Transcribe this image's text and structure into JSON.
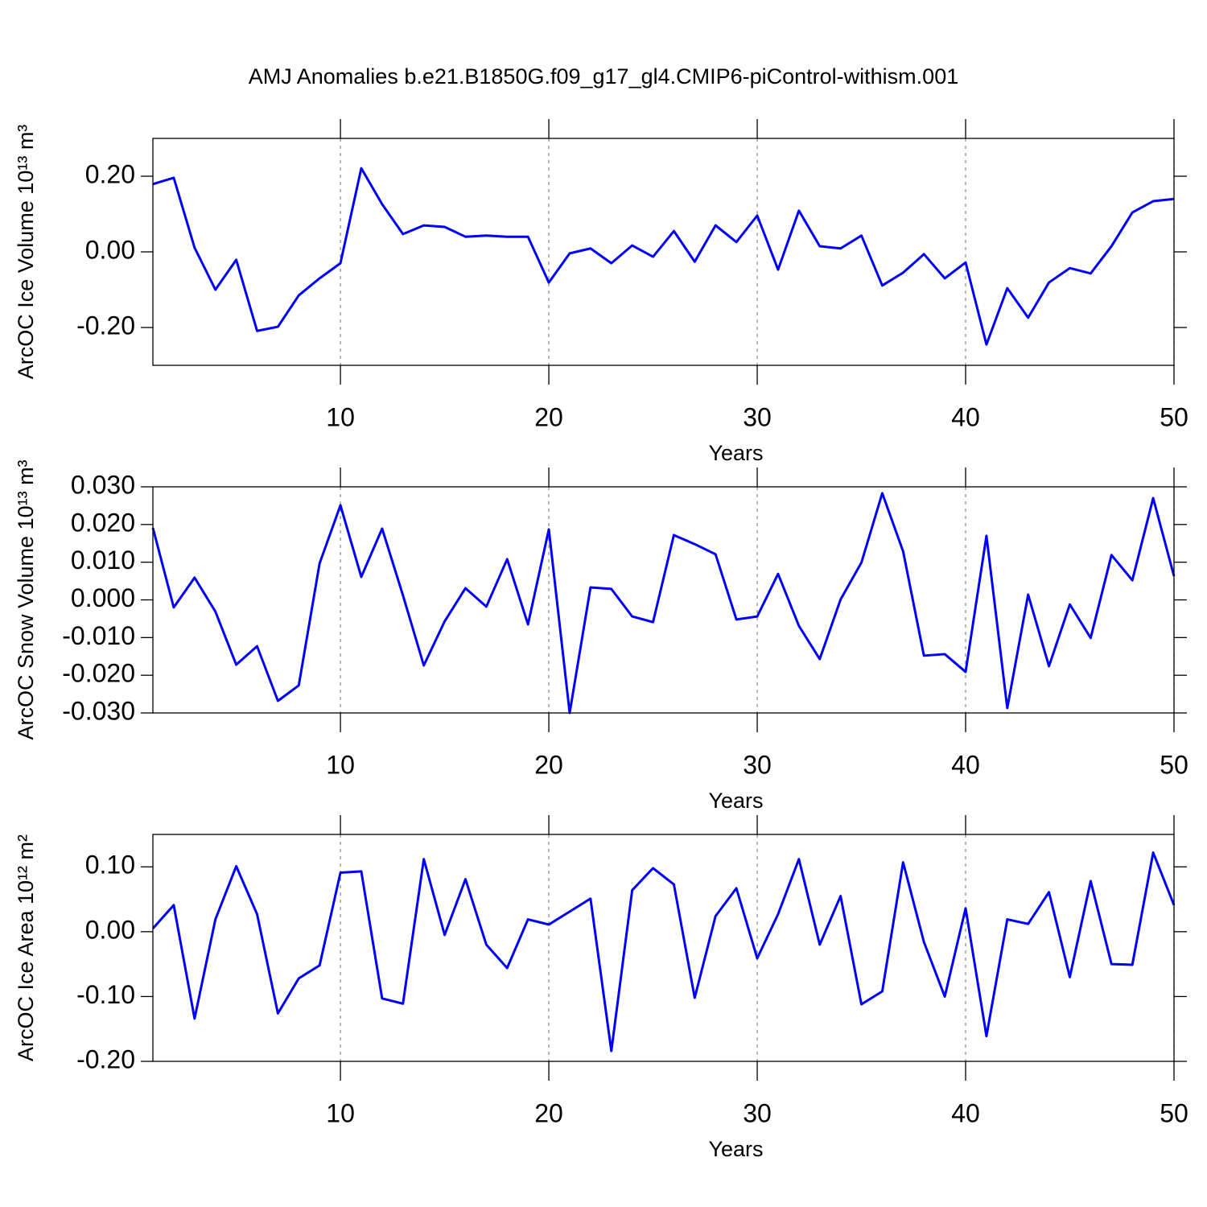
{
  "title": "AMJ Anomalies b.e21.B1850G.f09_g17_gl4.CMIP6-piControl-withism.001",
  "chart_data": [
    {
      "type": "line",
      "xlabel": "Years",
      "ylabel": "ArcOC Ice Volume 10¹³ m³",
      "color": "#0000ff",
      "xgrid": true,
      "x": [
        1,
        2,
        3,
        4,
        5,
        6,
        7,
        8,
        9,
        10,
        11,
        12,
        13,
        14,
        15,
        16,
        17,
        18,
        19,
        20,
        21,
        22,
        23,
        24,
        25,
        26,
        27,
        28,
        29,
        30,
        31,
        32,
        33,
        34,
        35,
        36,
        37,
        38,
        39,
        40,
        41,
        42,
        43,
        44,
        45,
        46,
        47,
        48,
        49,
        50
      ],
      "values": [
        0.179,
        0.196,
        0.011,
        -0.1,
        -0.021,
        -0.209,
        -0.198,
        -0.115,
        -0.07,
        -0.03,
        0.221,
        0.126,
        0.047,
        0.07,
        0.066,
        0.04,
        0.043,
        0.04,
        0.04,
        -0.081,
        -0.004,
        0.009,
        -0.03,
        0.017,
        -0.013,
        0.055,
        -0.026,
        0.07,
        0.026,
        0.096,
        -0.047,
        0.109,
        0.015,
        0.009,
        0.043,
        -0.089,
        -0.055,
        -0.006,
        -0.07,
        -0.028,
        -0.245,
        -0.096,
        -0.174,
        -0.081,
        -0.043,
        -0.057,
        0.015,
        0.104,
        0.134,
        0.14
      ],
      "xlim": [
        1,
        50
      ],
      "xticks": [
        10,
        20,
        30,
        40,
        50
      ],
      "ylim": [
        -0.3,
        0.3
      ],
      "yticks": [
        {
          "value": -0.2,
          "label": "-0.20"
        },
        {
          "value": 0,
          "label": "0.00"
        },
        {
          "value": 0.2,
          "label": "0.20"
        }
      ]
    },
    {
      "type": "line",
      "xlabel": "Years",
      "ylabel": "ArcOC Snow Volume 10¹³ m³",
      "color": "#0000ff",
      "xgrid": true,
      "x": [
        1,
        2,
        3,
        4,
        5,
        6,
        7,
        8,
        9,
        10,
        11,
        12,
        13,
        14,
        15,
        16,
        17,
        18,
        19,
        20,
        21,
        22,
        23,
        24,
        25,
        26,
        27,
        28,
        29,
        30,
        31,
        32,
        33,
        34,
        35,
        36,
        37,
        38,
        39,
        40,
        41,
        42,
        43,
        44,
        45,
        46,
        47,
        48,
        49,
        50
      ],
      "values": [
        0.0191,
        -0.002,
        0.0059,
        -0.0031,
        -0.0172,
        -0.0123,
        -0.0268,
        -0.0227,
        0.0097,
        0.0251,
        0.0061,
        0.0189,
        0.0012,
        -0.0174,
        -0.0057,
        0.0031,
        -0.0018,
        0.0108,
        -0.0065,
        0.0187,
        -0.03,
        0.0033,
        0.0029,
        -0.0044,
        -0.0059,
        0.0172,
        0.0148,
        0.0121,
        -0.0052,
        -0.0044,
        0.0069,
        -0.0069,
        -0.0157,
        0.0001,
        0.0099,
        0.0283,
        0.0129,
        -0.0148,
        -0.0144,
        -0.0191,
        0.017,
        -0.0287,
        0.0014,
        -0.0176,
        -0.0012,
        -0.0101,
        0.0119,
        0.0052,
        0.027,
        0.0063
      ],
      "xlim": [
        1,
        50
      ],
      "xticks": [
        10,
        20,
        30,
        40,
        50
      ],
      "ylim": [
        -0.03,
        0.03
      ],
      "yticks": [
        {
          "value": -0.03,
          "label": "-0.030"
        },
        {
          "value": -0.02,
          "label": "-0.020"
        },
        {
          "value": -0.01,
          "label": "-0.010"
        },
        {
          "value": 0,
          "label": "0.000"
        },
        {
          "value": 0.01,
          "label": "0.010"
        },
        {
          "value": 0.02,
          "label": "0.020"
        },
        {
          "value": 0.03,
          "label": "0.030"
        }
      ]
    },
    {
      "type": "line",
      "xlabel": "Years",
      "ylabel": "ArcOC Ice Area 10¹² m²",
      "color": "#0000ff",
      "xgrid": true,
      "x": [
        1,
        2,
        3,
        4,
        5,
        6,
        7,
        8,
        9,
        10,
        11,
        12,
        13,
        14,
        15,
        16,
        17,
        18,
        19,
        20,
        21,
        22,
        23,
        24,
        25,
        26,
        27,
        28,
        29,
        30,
        31,
        32,
        33,
        34,
        35,
        36,
        37,
        38,
        39,
        40,
        41,
        42,
        43,
        44,
        45,
        46,
        47,
        48,
        49,
        50
      ],
      "values": [
        0.005,
        0.041,
        -0.134,
        0.019,
        0.101,
        0.027,
        -0.126,
        -0.072,
        -0.052,
        0.091,
        0.093,
        -0.103,
        -0.111,
        0.112,
        -0.005,
        0.081,
        -0.02,
        -0.056,
        0.019,
        0.011,
        0.031,
        0.051,
        -0.184,
        0.064,
        0.098,
        0.073,
        -0.102,
        0.024,
        0.067,
        -0.041,
        0.027,
        0.112,
        -0.02,
        0.055,
        -0.112,
        -0.092,
        0.107,
        -0.016,
        -0.1,
        0.036,
        -0.161,
        0.019,
        0.012,
        0.061,
        -0.07,
        0.078,
        -0.05,
        -0.051,
        0.122,
        0.041
      ],
      "xlim": [
        1,
        50
      ],
      "xticks": [
        10,
        20,
        30,
        40,
        50
      ],
      "ylim": [
        -0.2,
        0.15
      ],
      "yticks": [
        {
          "value": -0.2,
          "label": "-0.20"
        },
        {
          "value": -0.1,
          "label": "-0.10"
        },
        {
          "value": 0,
          "label": "0.00"
        },
        {
          "value": 0.1,
          "label": "0.10"
        }
      ]
    }
  ]
}
